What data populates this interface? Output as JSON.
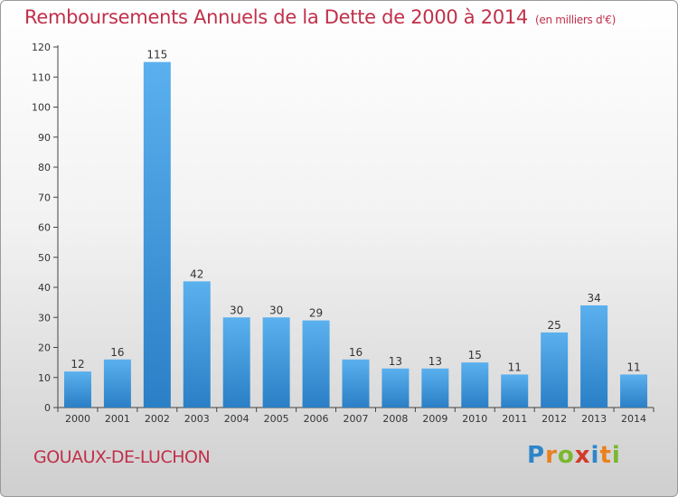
{
  "title": "Remboursements Annuels de la Dette de 2000 à 2014",
  "subtitle": "(en milliers d'€)",
  "commune": "GOUAUX-DE-LUCHON",
  "logo": {
    "letters": [
      "P",
      "r",
      "o",
      "x",
      "i",
      "t",
      "i"
    ],
    "colors": [
      "#2e86c9",
      "#e8821e",
      "#7ab82e",
      "#d23a2a",
      "#2e86c9",
      "#e8821e",
      "#7ab82e"
    ]
  },
  "chart_data": {
    "type": "bar",
    "categories": [
      "2000",
      "2001",
      "2002",
      "2003",
      "2004",
      "2005",
      "2006",
      "2007",
      "2008",
      "2009",
      "2010",
      "2011",
      "2012",
      "2013",
      "2014"
    ],
    "values": [
      12,
      16,
      115,
      42,
      30,
      30,
      29,
      16,
      13,
      13,
      15,
      11,
      25,
      34,
      11
    ],
    "ylim": [
      0,
      120
    ],
    "yticks": [
      0,
      10,
      20,
      30,
      40,
      50,
      60,
      70,
      80,
      90,
      100,
      110,
      120
    ],
    "grid": false,
    "bar_color": "#3a92d8"
  }
}
